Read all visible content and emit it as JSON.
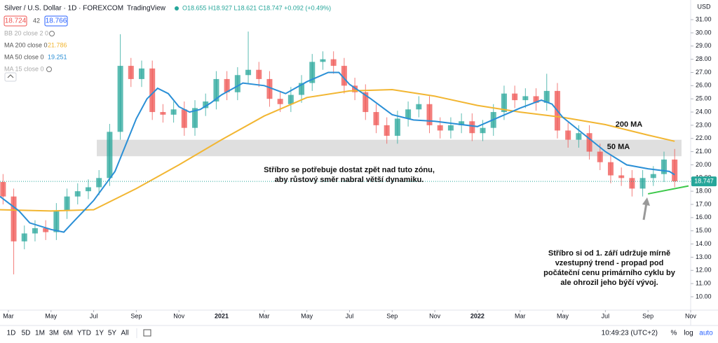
{
  "chart_data": {
    "type": "candlestick",
    "title": "Silver / U.S. Dollar · 1D · FOREXCOM",
    "source": "TradingView",
    "ohlc_text": "O18.655 H18.927 L18.621 C18.747 +0.092 (+0.49%)",
    "bid": 18.724,
    "spread": 42,
    "ask": 18.766,
    "currency": "USD",
    "indicators": [
      {
        "name": "BB 20 close 2 0"
      },
      {
        "name": "MA 200 close 0",
        "color": "#f2b632",
        "x": [
          1.607,
          4,
          6,
          8,
          10,
          12,
          14,
          16,
          18,
          20,
          22,
          24,
          26,
          28,
          30,
          32,
          33.25
        ],
        "values": [
          16.6,
          16.5,
          16.6,
          18.2,
          20.0,
          21.9,
          23.7,
          25.1,
          25.6,
          25.7,
          25.2,
          24.5,
          24.0,
          23.6,
          23.05,
          22.25,
          21.786
        ]
      },
      {
        "name": "MA 50 close 0",
        "color": "#2a8fd6",
        "x": [
          1.607,
          2.5,
          3,
          4,
          4.6,
          5,
          6,
          7,
          7.5,
          8,
          8.5,
          9,
          9.5,
          10,
          10.5,
          11,
          11.5,
          12,
          13,
          14,
          15,
          16,
          17,
          17.5,
          18,
          19,
          20,
          21,
          22,
          23,
          24,
          25,
          26,
          27,
          27.5,
          28,
          29,
          30,
          31,
          32,
          33,
          33.25
        ],
        "values": [
          17.6,
          16.5,
          15.6,
          15.1,
          14.9,
          15.6,
          17.3,
          19.5,
          21.5,
          23.5,
          25.0,
          25.8,
          25.4,
          24.4,
          24.0,
          24.2,
          24.7,
          25.3,
          26.2,
          26.0,
          25.4,
          26.3,
          27.0,
          27.0,
          26.1,
          25.0,
          23.8,
          23.4,
          23.3,
          23.1,
          22.9,
          23.6,
          24.3,
          24.9,
          24.6,
          23.6,
          22.3,
          21.0,
          20.0,
          19.7,
          19.5,
          19.251
        ]
      },
      {
        "name": "MA 15 close 0"
      }
    ],
    "candles": {
      "up_color": "#26a69a",
      "down_color": "#ef5350",
      "x": [
        1.75,
        2.25,
        2.75,
        3.25,
        3.75,
        4.25,
        4.75,
        5.25,
        5.75,
        6.25,
        6.75,
        7.25,
        7.75,
        8.25,
        8.75,
        9.25,
        9.75,
        10.25,
        10.75,
        11.25,
        11.75,
        12.25,
        12.75,
        13.25,
        13.75,
        14.25,
        14.75,
        15.25,
        15.75,
        16.25,
        16.75,
        17.25,
        17.75,
        18.25,
        18.75,
        19.25,
        19.75,
        20.25,
        20.75,
        21.25,
        21.75,
        22.25,
        22.75,
        23.25,
        23.75,
        24.25,
        24.75,
        25.25,
        25.75,
        26.25,
        26.75,
        27.25,
        27.75,
        28.25,
        28.75,
        29.25,
        29.75,
        30.25,
        30.75,
        31.25,
        31.75,
        32.25,
        32.75,
        33.25
      ],
      "open": [
        18.7,
        17.6,
        14.2,
        14.8,
        15.2,
        14.9,
        16.5,
        17.6,
        18.0,
        18.3,
        19.0,
        22.5,
        27.5,
        26.5,
        27.3,
        24.0,
        23.8,
        24.2,
        22.8,
        24.3,
        24.8,
        26.5,
        25.5,
        26.8,
        27.2,
        26.5,
        25.0,
        24.6,
        25.3,
        26.2,
        27.8,
        28.0,
        27.5,
        26.0,
        25.5,
        24.0,
        23.0,
        22.2,
        23.5,
        24.2,
        24.6,
        23.0,
        22.6,
        23.0,
        23.3,
        22.4,
        22.8,
        24.0,
        25.4,
        24.9,
        25.2,
        24.7,
        25.6,
        22.6,
        21.9,
        22.4,
        21.0,
        20.2,
        19.2,
        19.0,
        18.2,
        19.0,
        19.3,
        20.4
      ],
      "high": [
        19.3,
        18.2,
        15.4,
        15.8,
        15.8,
        17.1,
        18.2,
        18.6,
        18.9,
        19.6,
        23.1,
        29.9,
        28.1,
        27.9,
        27.9,
        24.6,
        24.8,
        24.8,
        24.9,
        25.4,
        27.1,
        27.1,
        27.4,
        30.1,
        27.8,
        27.1,
        25.6,
        25.9,
        26.8,
        28.4,
        28.6,
        28.6,
        28.1,
        26.6,
        26.1,
        24.6,
        23.6,
        24.1,
        24.8,
        25.2,
        25.2,
        23.6,
        23.6,
        23.9,
        23.9,
        23.4,
        24.6,
        26.0,
        26.0,
        25.8,
        25.8,
        26.9,
        26.2,
        23.2,
        23.0,
        23.0,
        21.6,
        20.8,
        19.8,
        19.6,
        19.6,
        19.9,
        21.0,
        21.2
      ],
      "low": [
        17.0,
        11.7,
        13.6,
        14.2,
        14.3,
        14.3,
        15.9,
        17.0,
        17.4,
        17.7,
        18.4,
        21.9,
        25.9,
        25.9,
        23.4,
        23.2,
        23.2,
        22.2,
        22.2,
        23.7,
        24.2,
        24.9,
        24.9,
        26.2,
        25.9,
        24.4,
        24.0,
        24.0,
        24.7,
        25.6,
        27.2,
        26.9,
        25.4,
        24.9,
        23.4,
        22.4,
        21.6,
        21.6,
        22.9,
        23.6,
        22.4,
        22.0,
        22.0,
        22.4,
        21.8,
        21.8,
        22.2,
        23.4,
        24.3,
        24.3,
        24.1,
        24.1,
        22.0,
        21.3,
        21.3,
        20.4,
        19.6,
        18.6,
        18.4,
        17.6,
        17.6,
        18.4,
        18.7,
        18.3
      ],
      "close": [
        17.6,
        14.2,
        14.8,
        15.2,
        14.9,
        16.5,
        17.6,
        18.0,
        18.3,
        19.0,
        22.5,
        27.5,
        26.5,
        27.3,
        24.0,
        23.8,
        24.2,
        22.8,
        24.3,
        24.8,
        26.5,
        25.5,
        26.8,
        27.2,
        26.5,
        25.0,
        24.6,
        25.3,
        26.2,
        27.8,
        28.0,
        27.5,
        26.0,
        25.5,
        24.0,
        23.0,
        22.2,
        23.5,
        24.2,
        24.6,
        23.0,
        22.6,
        23.0,
        23.3,
        22.4,
        22.8,
        24.0,
        25.4,
        24.9,
        25.2,
        24.7,
        25.6,
        22.6,
        21.9,
        22.4,
        21.0,
        20.2,
        19.2,
        19.0,
        18.2,
        19.0,
        19.3,
        20.4,
        18.747
      ]
    },
    "zone": {
      "low": 20.65,
      "high": 21.9
    },
    "trendline": {
      "color": "#3cc84a",
      "x": [
        32.0,
        33.9
      ],
      "values": [
        17.8,
        18.4
      ]
    },
    "annotations": [
      {
        "text": "200 MA"
      },
      {
        "text": "50 MA"
      },
      {
        "lines": [
          "Stříbro se potřebuje dostat zpět nad tuto zónu,",
          "aby růstový směr nabral větší dynamiku."
        ]
      },
      {
        "lines": [
          "Stříbro si od 1. září udržuje mírně",
          "vzestupný trend - propad pod",
          "počáteční cenu primárního cyklu by",
          "ale ohrozil jeho býčí vývoj."
        ]
      }
    ],
    "xlim": [
      1.607,
      34
    ],
    "xticks": [
      {
        "value": 2,
        "label": "Mar"
      },
      {
        "value": 4,
        "label": "May"
      },
      {
        "value": 6,
        "label": "Jul"
      },
      {
        "value": 8,
        "label": "Sep"
      },
      {
        "value": 10,
        "label": "Nov"
      },
      {
        "value": 12,
        "label": "2021"
      },
      {
        "value": 14,
        "label": "Mar"
      },
      {
        "value": 16,
        "label": "May"
      },
      {
        "value": 18,
        "label": "Jul"
      },
      {
        "value": 20,
        "label": "Sep"
      },
      {
        "value": 22,
        "label": "Nov"
      },
      {
        "value": 24,
        "label": "2022"
      },
      {
        "value": 26,
        "label": "Mar"
      },
      {
        "value": 28,
        "label": "May"
      },
      {
        "value": 30,
        "label": "Jul"
      },
      {
        "value": 32,
        "label": "Sep"
      },
      {
        "value": 34,
        "label": "Nov"
      }
    ],
    "ylim": [
      9.15,
      32.49
    ],
    "yticks": [
      {
        "value": 10,
        "label": "10.00"
      },
      {
        "value": 11,
        "label": "11.00"
      },
      {
        "value": 12,
        "label": "12.00"
      },
      {
        "value": 13,
        "label": "13.00"
      },
      {
        "value": 14,
        "label": "14.00"
      },
      {
        "value": 15,
        "label": "15.00"
      },
      {
        "value": 16,
        "label": "16.00"
      },
      {
        "value": 17,
        "label": "17.00"
      },
      {
        "value": 18,
        "label": "18.00"
      },
      {
        "value": 19,
        "label": "19.00"
      },
      {
        "value": 20,
        "label": "20.00"
      },
      {
        "value": 21,
        "label": "21.00"
      },
      {
        "value": 22,
        "label": "22.00"
      },
      {
        "value": 23,
        "label": "23.00"
      },
      {
        "value": 24,
        "label": "24.00"
      },
      {
        "value": 25,
        "label": "25.00"
      },
      {
        "value": 26,
        "label": "26.00"
      },
      {
        "value": 27,
        "label": "27.00"
      },
      {
        "value": 28,
        "label": "28.00"
      },
      {
        "value": 29,
        "label": "29.00"
      },
      {
        "value": 30,
        "label": "30.00"
      },
      {
        "value": 31,
        "label": "31.00"
      }
    ],
    "grid": false,
    "toolbar": {
      "ranges": [
        "1D",
        "5D",
        "1M",
        "3M",
        "6M",
        "YTD",
        "1Y",
        "5Y",
        "All"
      ],
      "time": "10:49:23 (UTC+2)",
      "options": [
        "%",
        "log",
        "auto"
      ]
    }
  }
}
